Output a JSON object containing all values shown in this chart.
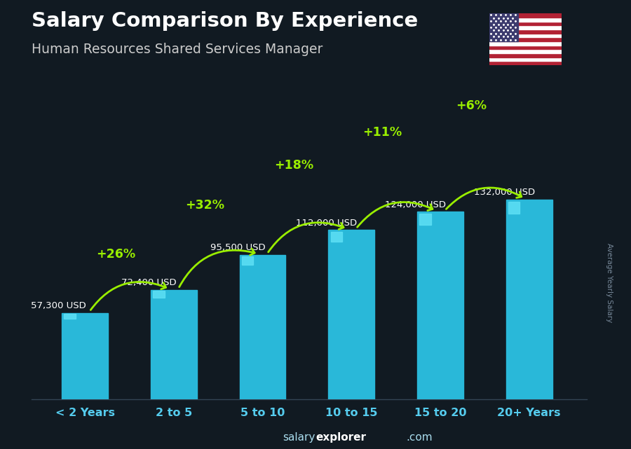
{
  "title_line1": "Salary Comparison By Experience",
  "title_line2": "Human Resources Shared Services Manager",
  "categories": [
    "< 2 Years",
    "2 to 5",
    "5 to 10",
    "10 to 15",
    "15 to 20",
    "20+ Years"
  ],
  "values": [
    57300,
    72400,
    95500,
    112000,
    124000,
    132000
  ],
  "labels": [
    "57,300 USD",
    "72,400 USD",
    "95,500 USD",
    "112,000 USD",
    "124,000 USD",
    "132,000 USD"
  ],
  "pct_changes": [
    "+26%",
    "+32%",
    "+18%",
    "+11%",
    "+6%"
  ],
  "bar_color": "#29b8d9",
  "bar_highlight": "#5de0f5",
  "bar_shadow": "#1a90b0",
  "bg_color": "#111a22",
  "title_color": "#ffffff",
  "subtitle_color": "#d8d8d8",
  "label_color": "#ffffff",
  "pct_color": "#99ee00",
  "tick_color": "#55ccee",
  "footer_color": "#aaddee",
  "ylabel_text": "Average Yearly Salary",
  "ylim": [
    0,
    160000
  ],
  "bar_width": 0.52
}
